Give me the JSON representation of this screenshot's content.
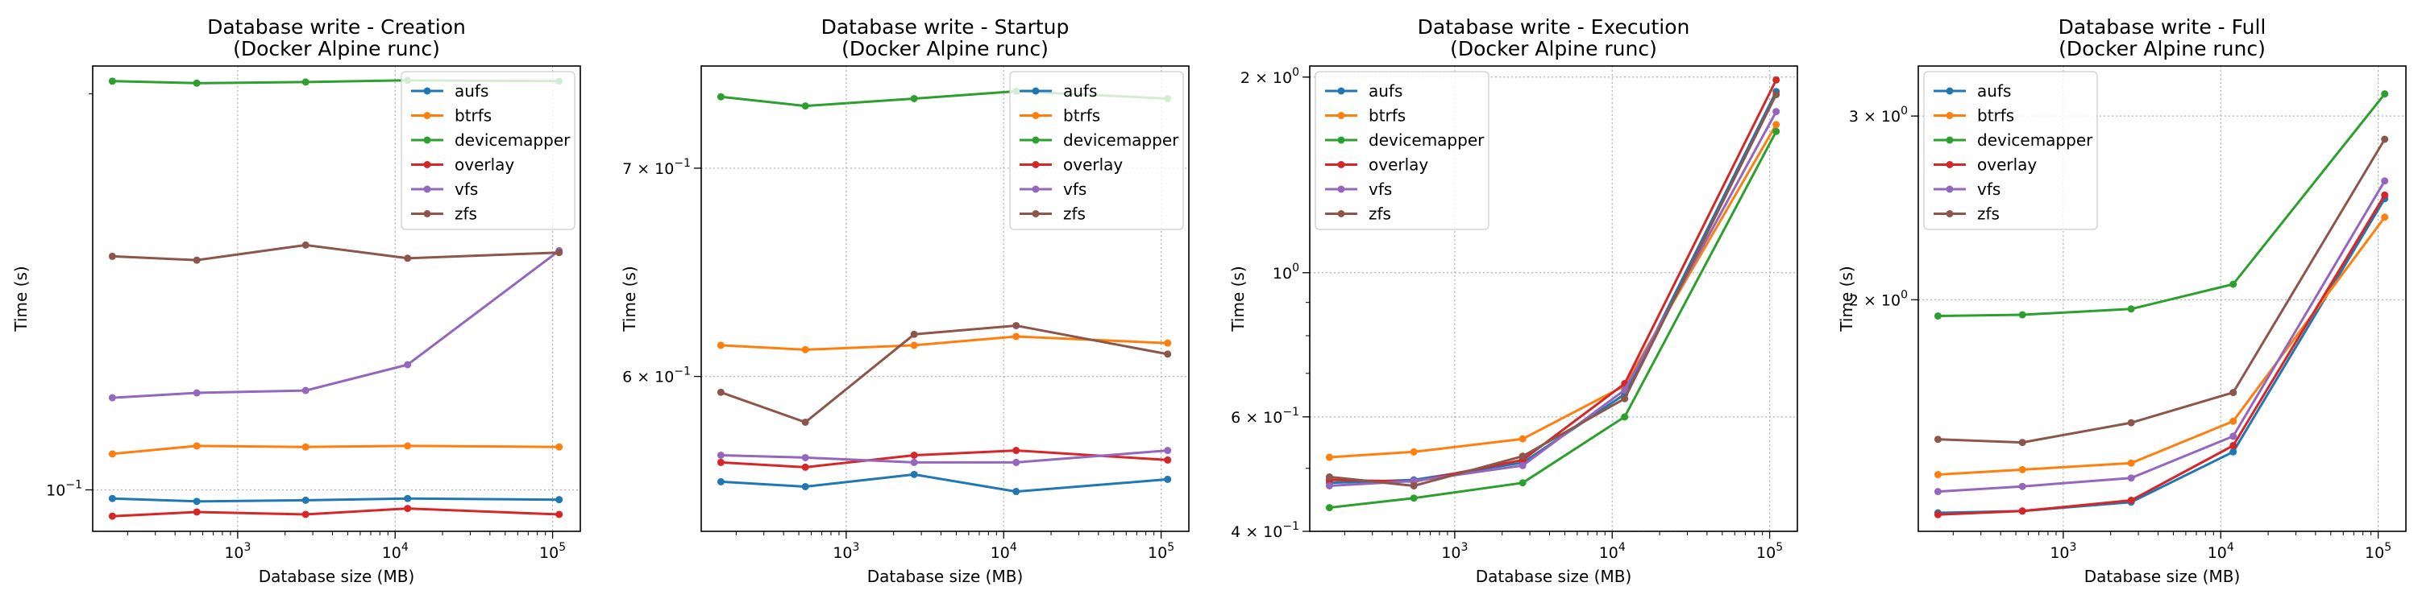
{
  "colors": {
    "aufs": "#1f77b4",
    "btrfs": "#ff7f0e",
    "devicemapper": "#2ca02c",
    "overlay": "#d62728",
    "vfs": "#9467bd",
    "zfs": "#8c564b"
  },
  "chart_data": [
    {
      "type": "line",
      "title": "Database write - Creation",
      "subtitle": "(Docker Alpine runc)",
      "xlabel": "Database size (MB)",
      "ylabel": "Time (s)",
      "xscale": "log",
      "yscale": "log",
      "xlim": [
        120,
        150000
      ],
      "ylim": [
        0.093,
        0.21
      ],
      "xticks": [
        {
          "value": 1000,
          "base": "10",
          "exp": "3"
        },
        {
          "value": 10000,
          "base": "10",
          "exp": "4"
        },
        {
          "value": 100000,
          "base": "10",
          "exp": "5"
        }
      ],
      "yticks": [
        {
          "value": 0.1,
          "label": "10",
          "sup": "−1"
        }
      ],
      "yminor": [
        0.2
      ],
      "grid": true,
      "legend": "upper right",
      "x": [
        160,
        550,
        2700,
        12000,
        110000
      ],
      "series": [
        {
          "name": "aufs",
          "values": [
            0.0985,
            0.098,
            0.0982,
            0.0985,
            0.0983
          ]
        },
        {
          "name": "btrfs",
          "values": [
            0.1065,
            0.108,
            0.1078,
            0.108,
            0.1078
          ]
        },
        {
          "name": "devicemapper",
          "values": [
            0.2045,
            0.2038,
            0.2042,
            0.2048,
            0.2045
          ]
        },
        {
          "name": "overlay",
          "values": [
            0.0955,
            0.0962,
            0.0958,
            0.0968,
            0.0958
          ]
        },
        {
          "name": "vfs",
          "values": [
            0.1175,
            0.1185,
            0.119,
            0.1245,
            0.152
          ]
        },
        {
          "name": "zfs",
          "values": [
            0.1505,
            0.1495,
            0.1535,
            0.15,
            0.1515
          ]
        }
      ]
    },
    {
      "type": "line",
      "title": "Database write - Startup",
      "subtitle": "(Docker Alpine runc)",
      "xlabel": "Database size (MB)",
      "ylabel": "Time (s)",
      "xscale": "log",
      "yscale": "log",
      "xlim": [
        120,
        150000
      ],
      "ylim": [
        0.535,
        0.755
      ],
      "xticks": [
        {
          "value": 1000,
          "base": "10",
          "exp": "3"
        },
        {
          "value": 10000,
          "base": "10",
          "exp": "4"
        },
        {
          "value": 100000,
          "base": "10",
          "exp": "5"
        }
      ],
      "yticks": [
        {
          "value": 0.6,
          "label": "6 × 10",
          "sup": "−1"
        },
        {
          "value": 0.7,
          "label": "7 × 10",
          "sup": "−1"
        }
      ],
      "yminor": [],
      "grid": true,
      "legend": "upper right",
      "x": [
        160,
        550,
        2700,
        12000,
        110000
      ],
      "series": [
        {
          "name": "aufs",
          "values": [
            0.555,
            0.553,
            0.558,
            0.551,
            0.556
          ]
        },
        {
          "name": "btrfs",
          "values": [
            0.614,
            0.612,
            0.614,
            0.618,
            0.615
          ]
        },
        {
          "name": "devicemapper",
          "values": [
            0.738,
            0.733,
            0.737,
            0.741,
            0.737
          ]
        },
        {
          "name": "overlay",
          "values": [
            0.563,
            0.561,
            0.566,
            0.568,
            0.564
          ]
        },
        {
          "name": "vfs",
          "values": [
            0.566,
            0.565,
            0.563,
            0.563,
            0.568
          ]
        },
        {
          "name": "zfs",
          "values": [
            0.593,
            0.58,
            0.619,
            0.623,
            0.61
          ]
        }
      ]
    },
    {
      "type": "line",
      "title": "Database write - Execution",
      "subtitle": "(Docker Alpine runc)",
      "xlabel": "Database size (MB)",
      "ylabel": "Time (s)",
      "xscale": "log",
      "yscale": "log",
      "xlim": [
        120,
        150000
      ],
      "ylim": [
        0.4,
        2.08
      ],
      "xticks": [
        {
          "value": 1000,
          "base": "10",
          "exp": "3"
        },
        {
          "value": 10000,
          "base": "10",
          "exp": "4"
        },
        {
          "value": 100000,
          "base": "10",
          "exp": "5"
        }
      ],
      "yticks": [
        {
          "value": 0.4,
          "label": "4 × 10",
          "sup": "−1"
        },
        {
          "value": 0.6,
          "label": "6 × 10",
          "sup": "−1"
        },
        {
          "value": 1,
          "label": "10",
          "sup": "0"
        },
        {
          "value": 2,
          "label": "2 × 10",
          "sup": "0"
        }
      ],
      "yminor": [],
      "grid": true,
      "legend": "upper left",
      "x": [
        160,
        550,
        2700,
        12000,
        110000
      ],
      "series": [
        {
          "name": "aufs",
          "values": [
            0.475,
            0.48,
            0.51,
            0.65,
            1.9
          ]
        },
        {
          "name": "btrfs",
          "values": [
            0.52,
            0.53,
            0.555,
            0.67,
            1.69
          ]
        },
        {
          "name": "devicemapper",
          "values": [
            0.435,
            0.45,
            0.475,
            0.6,
            1.65
          ]
        },
        {
          "name": "overlay",
          "values": [
            0.48,
            0.477,
            0.515,
            0.675,
            1.98
          ]
        },
        {
          "name": "vfs",
          "values": [
            0.47,
            0.478,
            0.505,
            0.66,
            1.77
          ]
        },
        {
          "name": "zfs",
          "values": [
            0.485,
            0.47,
            0.522,
            0.64,
            1.88
          ]
        }
      ]
    },
    {
      "type": "line",
      "title": "Database write - Full",
      "subtitle": "(Docker Alpine runc)",
      "xlabel": "Database size (MB)",
      "ylabel": "Time (s)",
      "xscale": "log",
      "yscale": "log",
      "xlim": [
        120,
        150000
      ],
      "ylim": [
        1.2,
        3.35
      ],
      "xticks": [
        {
          "value": 1000,
          "base": "10",
          "exp": "3"
        },
        {
          "value": 10000,
          "base": "10",
          "exp": "4"
        },
        {
          "value": 100000,
          "base": "10",
          "exp": "5"
        }
      ],
      "yticks": [
        {
          "value": 2,
          "label": "2 × 10",
          "sup": "0"
        },
        {
          "value": 3,
          "label": "3 × 10",
          "sup": "0"
        }
      ],
      "yminor": [],
      "grid": true,
      "legend": "upper left",
      "x": [
        160,
        550,
        2700,
        12000,
        110000
      ],
      "series": [
        {
          "name": "aufs",
          "values": [
            1.25,
            1.255,
            1.28,
            1.43,
            2.5
          ]
        },
        {
          "name": "btrfs",
          "values": [
            1.36,
            1.375,
            1.395,
            1.53,
            2.4
          ]
        },
        {
          "name": "devicemapper",
          "values": [
            1.93,
            1.935,
            1.96,
            2.07,
            3.15
          ]
        },
        {
          "name": "overlay",
          "values": [
            1.245,
            1.255,
            1.285,
            1.45,
            2.52
          ]
        },
        {
          "name": "vfs",
          "values": [
            1.31,
            1.325,
            1.35,
            1.48,
            2.6
          ]
        },
        {
          "name": "zfs",
          "values": [
            1.47,
            1.46,
            1.525,
            1.63,
            2.85
          ]
        }
      ]
    }
  ]
}
